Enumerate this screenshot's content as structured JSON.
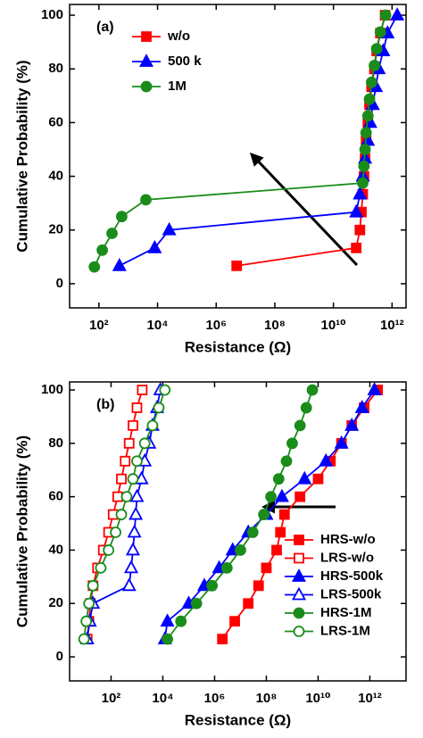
{
  "chart_data": [
    {
      "type": "line",
      "label": "(a)",
      "xlabel": "Resistance (Ω)",
      "ylabel": "Cumulative Probability (%)",
      "log_x": true,
      "xlim": [
        10,
        3000000000000
      ],
      "xticks": [
        {
          "value": 100,
          "label": "10²"
        },
        {
          "value": 10000,
          "label": "10⁴"
        },
        {
          "value": 1000000,
          "label": "10⁶"
        },
        {
          "value": 100000000,
          "label": "10⁸"
        },
        {
          "value": 10000000000,
          "label": "10¹⁰"
        },
        {
          "value": 1000000000000,
          "label": "10¹²"
        }
      ],
      "ylim": [
        -9,
        104
      ],
      "yticks": [
        0,
        20,
        40,
        60,
        80,
        100
      ],
      "legend": "upper left",
      "series": [
        {
          "name": "w/o",
          "color": "#ff0000",
          "marker": "square",
          "filled": true,
          "x": [
            5000000,
            60000000000,
            80000000000,
            90000000000,
            100000000000,
            110000000000,
            120000000000,
            130000000000,
            150000000000,
            170000000000,
            200000000000,
            250000000000,
            300000000000,
            400000000000,
            580000000000
          ],
          "values": [
            6.67,
            13.33,
            20,
            26.67,
            33.33,
            40,
            46.67,
            53.33,
            60,
            66.67,
            73.33,
            80,
            86.67,
            93.33,
            100
          ]
        },
        {
          "name": "500 k",
          "color": "#0000ff",
          "marker": "triangle",
          "filled": true,
          "x": [
            500,
            8000,
            25000,
            60000000000,
            80000000000,
            100000000000,
            120000000000,
            150000000000,
            180000000000,
            220000000000,
            280000000000,
            350000000000,
            500000000000,
            700000000000,
            1500000000000
          ],
          "values": [
            6.67,
            13.33,
            20,
            26.67,
            33.33,
            40,
            46.67,
            53.33,
            60,
            66.67,
            73.33,
            80,
            86.67,
            93.33,
            100
          ]
        },
        {
          "name": "1M",
          "color": "#1a8c1a",
          "marker": "circle",
          "filled": true,
          "x": [
            70,
            130,
            280,
            600,
            4000,
            100000000000,
            110000000000,
            120000000000,
            130000000000,
            150000000000,
            170000000000,
            200000000000,
            250000000000,
            300000000000,
            400000000000,
            600000000000
          ],
          "values": [
            6.25,
            12.5,
            18.75,
            25,
            31.25,
            37.5,
            43.75,
            50,
            56.25,
            62.5,
            68.75,
            75,
            81.25,
            87.5,
            93.75,
            100
          ]
        }
      ]
    },
    {
      "type": "line",
      "label": "(b)",
      "xlabel": "Resistance (Ω)",
      "ylabel": "Cumulative Probability (%)",
      "log_x": true,
      "xlim": [
        2.5,
        25000000000000
      ],
      "xticks": [
        {
          "value": 100,
          "label": "10²"
        },
        {
          "value": 10000,
          "label": "10⁴"
        },
        {
          "value": 1000000,
          "label": "10⁶"
        },
        {
          "value": 100000000,
          "label": "10⁸"
        },
        {
          "value": 10000000000,
          "label": "10¹⁰"
        },
        {
          "value": 1000000000000,
          "label": "10¹²"
        }
      ],
      "ylim": [
        -9,
        103
      ],
      "yticks": [
        0,
        20,
        40,
        60,
        80,
        100
      ],
      "legend": "lower right",
      "series": [
        {
          "name": "HRS-w/o",
          "color": "#ff0000",
          "marker": "square",
          "filled": true,
          "x": [
            2000000,
            6000000,
            20000000,
            50000000,
            100000000,
            250000000,
            350000000,
            500000000,
            2000000000,
            10000000000,
            30000000000,
            80000000000,
            200000000000,
            600000000000,
            2000000000000
          ],
          "values": [
            6.67,
            13.33,
            20,
            26.67,
            33.33,
            40,
            46.67,
            53.33,
            60,
            66.67,
            73.33,
            80,
            86.67,
            93.33,
            100
          ]
        },
        {
          "name": "LRS-w/o",
          "color": "#ff0000",
          "marker": "square",
          "filled": false,
          "x": [
            12,
            14,
            16,
            20,
            30,
            50,
            80,
            120,
            180,
            250,
            350,
            500,
            700,
            1000,
            1600
          ],
          "values": [
            6.67,
            13.33,
            20,
            26.67,
            33.33,
            40,
            46.67,
            53.33,
            60,
            66.67,
            73.33,
            80,
            86.67,
            93.33,
            100
          ]
        },
        {
          "name": "HRS-500k",
          "color": "#0000ff",
          "marker": "triangle",
          "filled": true,
          "x": [
            12000,
            15000,
            100000,
            400000,
            1500000,
            5000000,
            20000000,
            100000000,
            400000000,
            3000000000,
            20000000000,
            80000000000,
            200000000000,
            500000000000,
            1500000000000
          ],
          "values": [
            6.67,
            13.33,
            20,
            26.67,
            33.33,
            40,
            46.67,
            53.33,
            60,
            66.67,
            73.33,
            80,
            86.67,
            93.33,
            100
          ]
        },
        {
          "name": "LRS-500k",
          "color": "#0000ff",
          "marker": "triangle",
          "filled": false,
          "x": [
            12,
            15,
            20,
            500,
            600,
            700,
            800,
            900,
            1000,
            1500,
            2000,
            3000,
            4000,
            6000,
            8000
          ],
          "values": [
            6.67,
            13.33,
            20,
            26.67,
            33.33,
            40,
            46.67,
            53.33,
            60,
            66.67,
            73.33,
            80,
            86.67,
            93.33,
            100
          ]
        },
        {
          "name": "HRS-1M",
          "color": "#1a8c1a",
          "marker": "circle",
          "filled": true,
          "x": [
            15000,
            50000,
            200000,
            800000,
            3000000,
            10000000,
            30000000,
            80000000,
            150000000,
            300000000,
            600000000,
            1000000000,
            2000000000,
            3500000000,
            6000000000
          ],
          "values": [
            6.67,
            13.33,
            20,
            26.67,
            33.33,
            40,
            46.67,
            53.33,
            60,
            66.67,
            73.33,
            80,
            86.67,
            93.33,
            100
          ]
        },
        {
          "name": "LRS-1M",
          "color": "#1a8c1a",
          "marker": "circle",
          "filled": false,
          "x": [
            9,
            11,
            14,
            20,
            40,
            80,
            150,
            250,
            400,
            700,
            1000,
            2000,
            4000,
            7000,
            12000
          ],
          "values": [
            6.67,
            13.33,
            20,
            26.67,
            33.33,
            40,
            46.67,
            53.33,
            60,
            66.67,
            73.33,
            80,
            86.67,
            93.33,
            100
          ]
        }
      ]
    }
  ]
}
